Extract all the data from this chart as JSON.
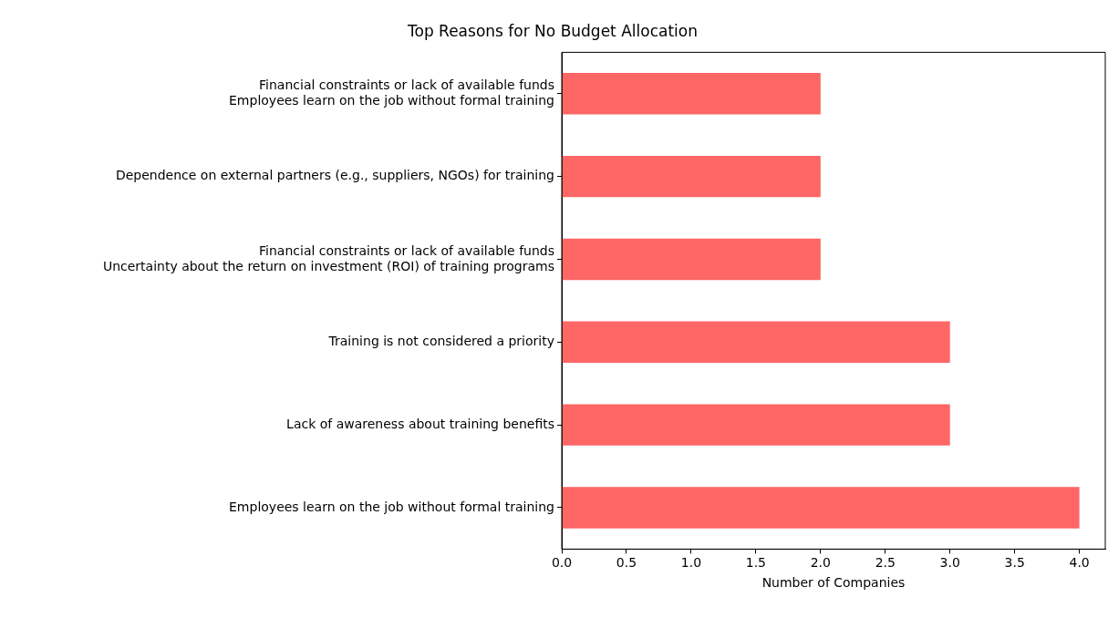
{
  "chart_data": {
    "type": "bar",
    "orientation": "horizontal",
    "title": "Top Reasons for No Budget Allocation",
    "xlabel": "Number of Companies",
    "categories": [
      "Financial constraints or lack of available funds\nEmployees learn on the job without formal training",
      "Dependence on external partners (e.g., suppliers, NGOs) for training",
      "Financial constraints or lack of available funds\nUncertainty about the return on investment (ROI) of training programs",
      "Training is not considered a priority",
      "Lack of awareness about training benefits",
      "Employees learn on the job without formal training"
    ],
    "values": [
      2,
      2,
      2,
      3,
      3,
      4
    ],
    "color": "#ff6666",
    "xlim": [
      0,
      4.2
    ],
    "xticks": [
      {
        "value": 0,
        "label": "0.0"
      },
      {
        "value": 0.5,
        "label": "0.5"
      },
      {
        "value": 1,
        "label": "1.0"
      },
      {
        "value": 1.5,
        "label": "1.5"
      },
      {
        "value": 2,
        "label": "2.0"
      },
      {
        "value": 2.5,
        "label": "2.5"
      },
      {
        "value": 3,
        "label": "3.0"
      },
      {
        "value": 3.5,
        "label": "3.5"
      },
      {
        "value": 4,
        "label": "4.0"
      }
    ],
    "grid": false,
    "legend": false
  }
}
